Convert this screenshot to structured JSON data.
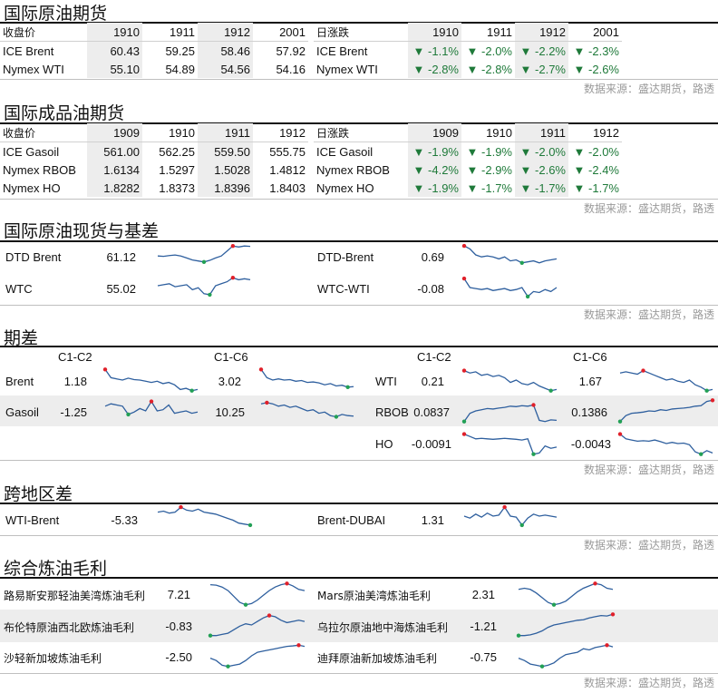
{
  "source_text": "数据来源：盛达期货，路透",
  "crude_futures": {
    "title": "国际原油期货",
    "left_header": [
      "收盘价",
      "1910",
      "1911",
      "1912",
      "2001"
    ],
    "right_header": [
      "日涨跌",
      "1910",
      "1911",
      "1912",
      "2001"
    ],
    "rows": [
      {
        "name": "ICE Brent",
        "prices": [
          "60.43",
          "59.25",
          "58.46",
          "57.92"
        ],
        "changes": [
          "▼ -1.1%",
          "▼ -2.0%",
          "▼ -2.2%",
          "▼ -2.3%"
        ]
      },
      {
        "name": "Nymex WTI",
        "prices": [
          "55.10",
          "54.89",
          "54.56",
          "54.16"
        ],
        "changes": [
          "▼ -2.8%",
          "▼ -2.8%",
          "▼ -2.7%",
          "▼ -2.6%"
        ]
      }
    ]
  },
  "product_futures": {
    "title": "国际成品油期货",
    "left_header": [
      "收盘价",
      "1909",
      "1910",
      "1911",
      "1912"
    ],
    "right_header": [
      "日涨跌",
      "1909",
      "1910",
      "1911",
      "1912"
    ],
    "rows": [
      {
        "name": "ICE Gasoil",
        "prices": [
          "561.00",
          "562.25",
          "559.50",
          "555.75"
        ],
        "changes": [
          "▼ -1.9%",
          "▼ -1.9%",
          "▼ -2.0%",
          "▼ -2.0%"
        ]
      },
      {
        "name": "Nymex RBOB",
        "prices": [
          "1.6134",
          "1.5297",
          "1.5028",
          "1.4812"
        ],
        "changes": [
          "▼ -4.2%",
          "▼ -2.9%",
          "▼ -2.6%",
          "▼ -2.4%"
        ]
      },
      {
        "name": "Nymex HO",
        "prices": [
          "1.8282",
          "1.8373",
          "1.8396",
          "1.8403"
        ],
        "changes": [
          "▼ -1.9%",
          "▼ -1.7%",
          "▼ -1.7%",
          "▼ -1.7%"
        ]
      }
    ]
  },
  "spot_basis": {
    "title": "国际原油现货与基差",
    "items": [
      {
        "name": "DTD Brent",
        "value": "61.12"
      },
      {
        "name": "WTC",
        "value": "55.02"
      },
      {
        "name": "DTD-Brent",
        "value": "0.69"
      },
      {
        "name": "WTC-WTI",
        "value": "-0.08"
      }
    ]
  },
  "spreads": {
    "title": "期差",
    "headers": [
      "C1-C2",
      "C1-C6",
      "C1-C2",
      "C1-C6"
    ],
    "rows": [
      {
        "left_name": "Brent",
        "l_c1c2": "1.18",
        "l_c1c6": "3.02",
        "right_name": "WTI",
        "r_c1c2": "0.21",
        "r_c1c6": "1.67"
      },
      {
        "left_name": "Gasoil",
        "l_c1c2": "-1.25",
        "l_c1c6": "10.25",
        "right_name": "RBOB",
        "r_c1c2": "0.0837",
        "r_c1c6": "0.1386"
      },
      {
        "left_name": "",
        "l_c1c2": "",
        "l_c1c6": "",
        "right_name": "HO",
        "r_c1c2": "-0.0091",
        "r_c1c6": "-0.0043"
      }
    ]
  },
  "regional": {
    "title": "跨地区差",
    "items": [
      {
        "name": "WTI-Brent",
        "value": "-5.33"
      },
      {
        "name": "Brent-DUBAI",
        "value": "1.31"
      }
    ]
  },
  "margins": {
    "title": "综合炼油毛利",
    "rows": [
      {
        "left_name": "路易斯安那轻油美湾炼油毛利",
        "left_value": "7.21",
        "right_name": "Mars原油美湾炼油毛利",
        "right_value": "2.31"
      },
      {
        "left_name": "布伦特原油西北欧炼油毛利",
        "left_value": "-0.83",
        "right_name": "乌拉尔原油地中海炼油毛利",
        "right_value": "-1.21"
      },
      {
        "left_name": "沙轻新加坡炼油毛利",
        "left_value": "-2.50",
        "right_name": "迪拜原油新加坡炼油毛利",
        "right_value": "-0.75"
      }
    ]
  },
  "colors": {
    "line": "#2e5f9e",
    "high_marker": "#e0202a",
    "low_marker": "#22a055",
    "down_change": "#1f7a3a",
    "shade": "#ededed"
  }
}
